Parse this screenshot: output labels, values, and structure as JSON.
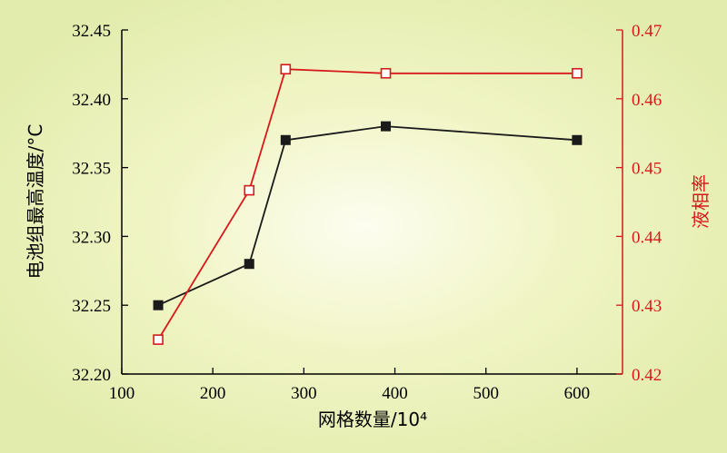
{
  "chart_data": {
    "type": "line",
    "xlabel": "网格数量/10⁴",
    "ylabel_left": "电池组最高温度/°C",
    "ylabel_right": "液相率",
    "x_ticks": [
      100,
      200,
      300,
      400,
      500,
      600
    ],
    "xlim": [
      100,
      650
    ],
    "y_left_ticks": [
      "32.20",
      "32.25",
      "32.30",
      "32.35",
      "32.40",
      "32.45"
    ],
    "y_left_lim": [
      32.2,
      32.45
    ],
    "y_right_ticks": [
      "0.42",
      "0.43",
      "0.44",
      "0.45",
      "0.46",
      "0.47"
    ],
    "y_right_lim": [
      0.42,
      0.47
    ],
    "grid": false,
    "colors": {
      "left_series": "#1a1a1a",
      "right_series": "#d7191c",
      "left_axis": "#000000",
      "right_axis": "#d7191c"
    },
    "series": [
      {
        "axis": "left",
        "marker": "filled-square",
        "x": [
          140,
          240,
          280,
          390,
          600
        ],
        "y": [
          32.25,
          32.28,
          32.37,
          32.38,
          32.37
        ]
      },
      {
        "axis": "right",
        "marker": "hollow-square",
        "x": [
          140,
          240,
          280,
          390,
          600
        ],
        "y": [
          0.425,
          0.4467,
          0.4643,
          0.4637,
          0.4637
        ]
      }
    ]
  }
}
